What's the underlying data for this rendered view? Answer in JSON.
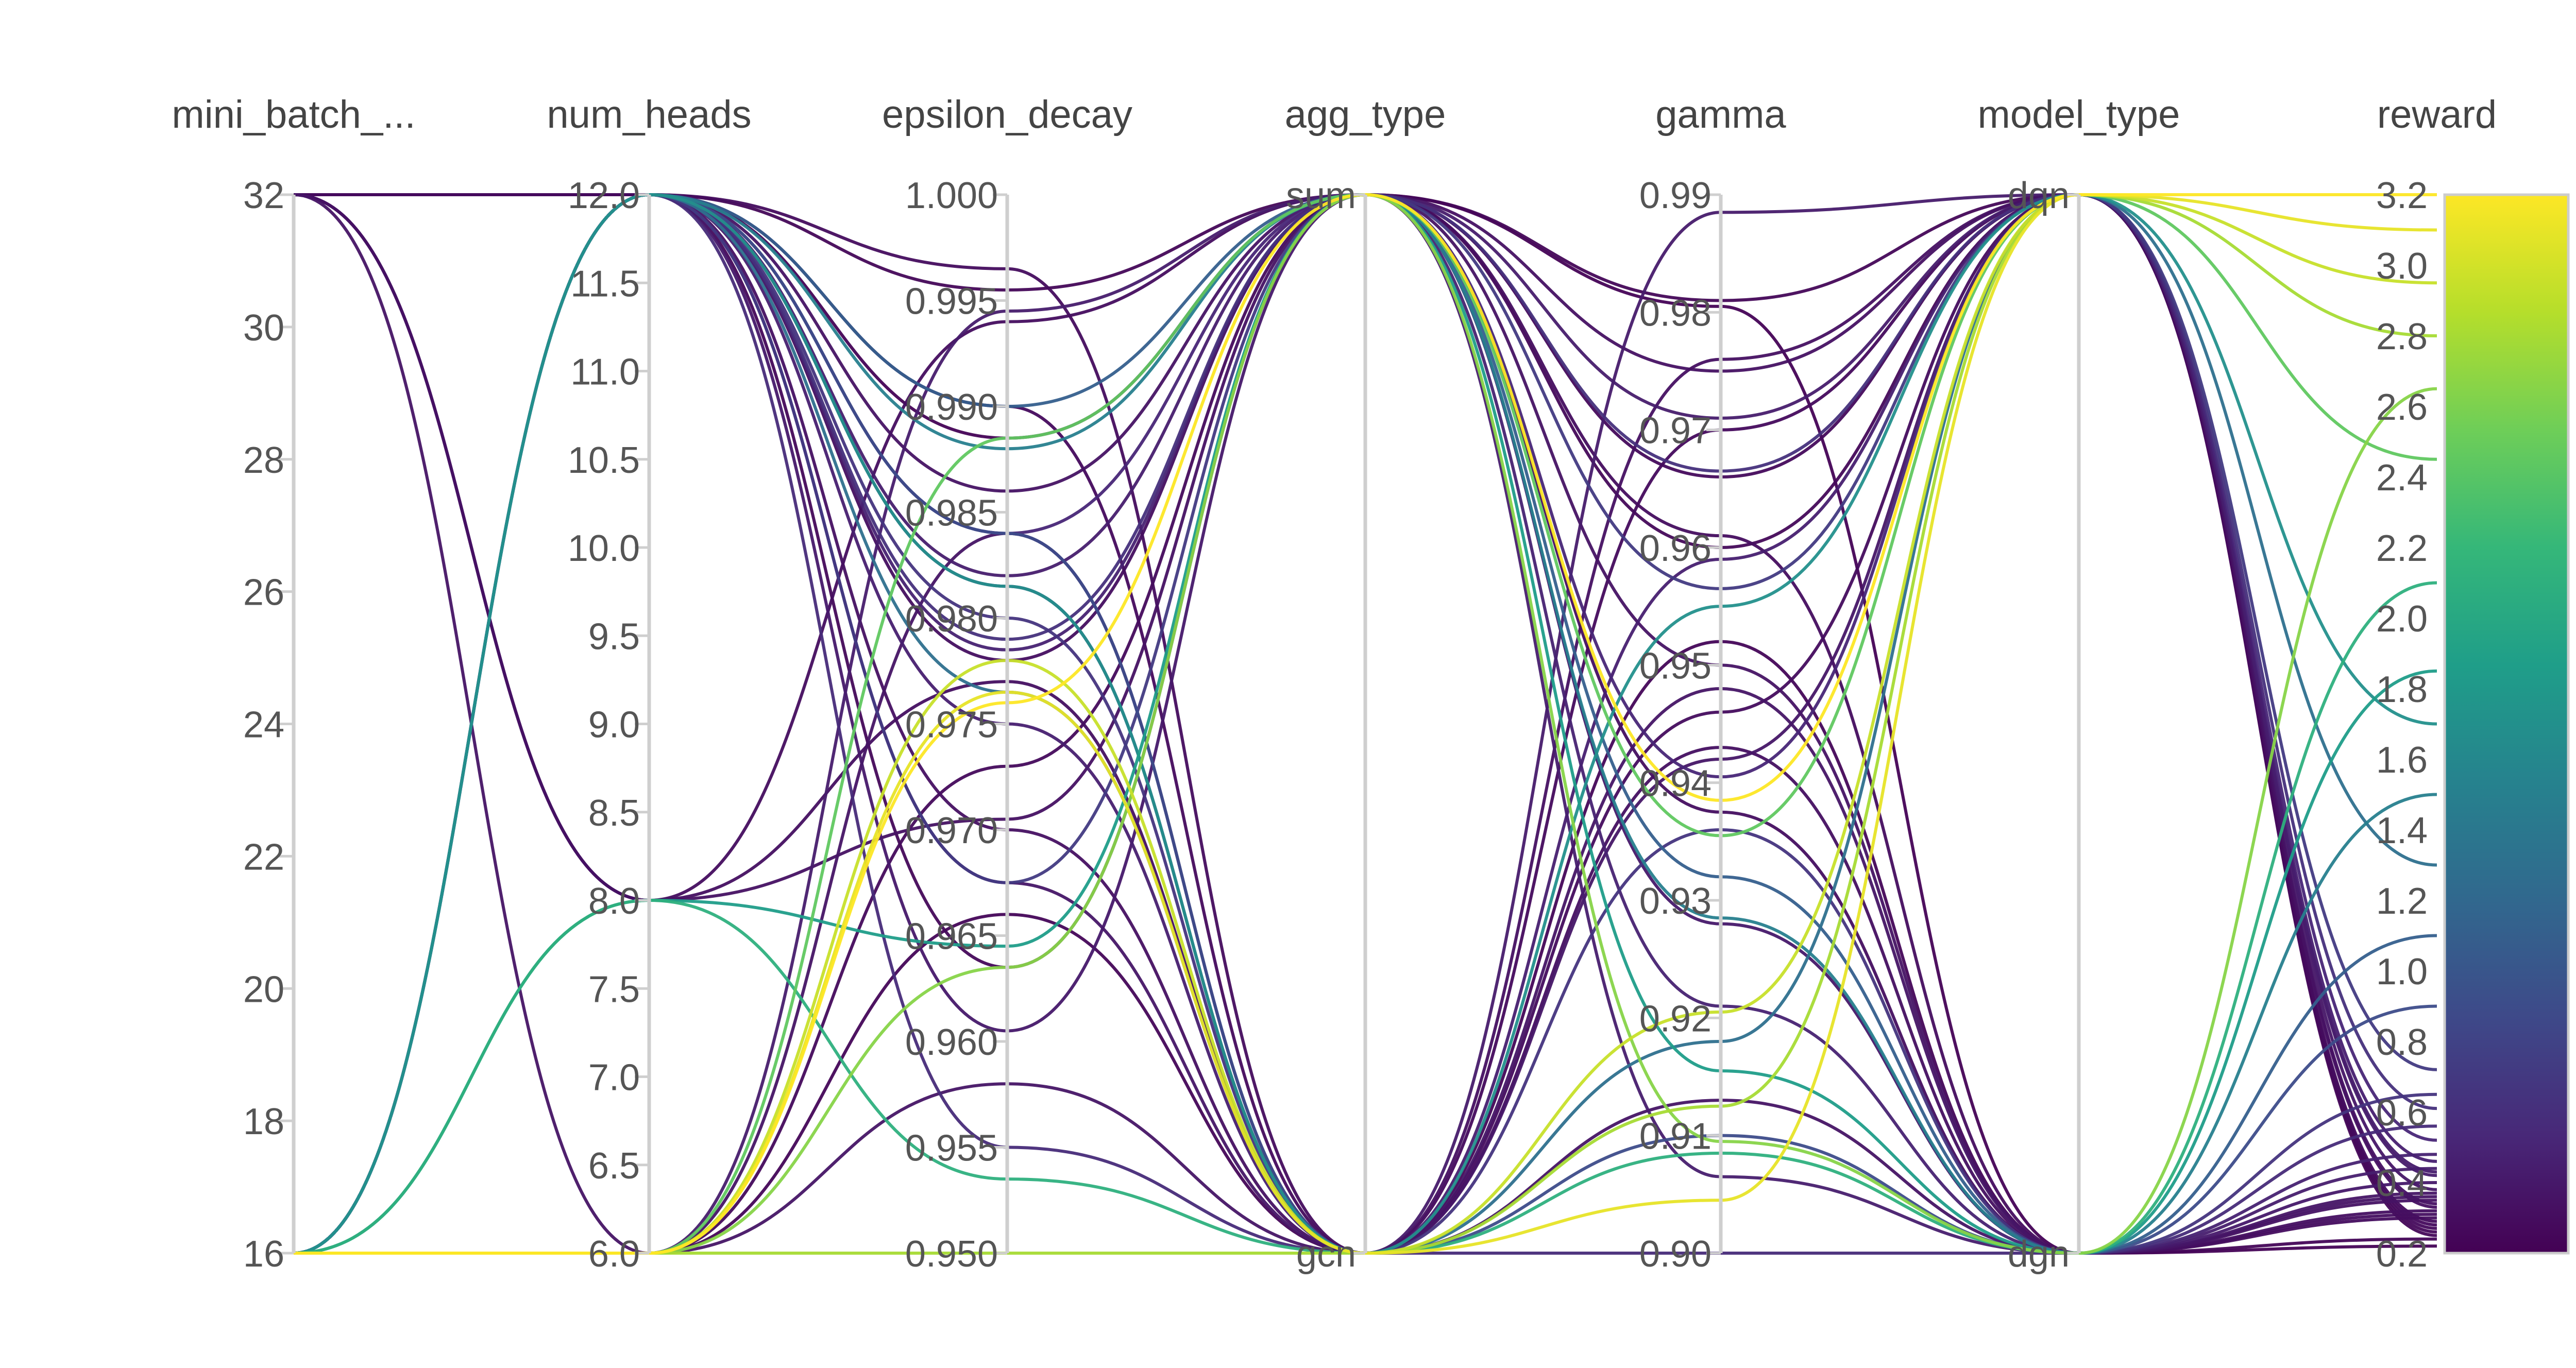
{
  "chart_data": {
    "type": "parallel_coordinates",
    "axes": [
      {
        "name": "mini_batch_...",
        "kind": "numeric",
        "range": [
          16,
          32
        ],
        "ticks": [
          "32",
          "30",
          "28",
          "26",
          "24",
          "22",
          "20",
          "18",
          "16"
        ]
      },
      {
        "name": "num_heads",
        "kind": "numeric",
        "range": [
          6.0,
          12.0
        ],
        "ticks": [
          "12.0",
          "11.5",
          "11.0",
          "10.5",
          "10.0",
          "9.5",
          "9.0",
          "8.5",
          "8.0",
          "7.5",
          "7.0",
          "6.5",
          "6.0"
        ]
      },
      {
        "name": "epsilon_decay",
        "kind": "numeric",
        "range": [
          0.95,
          1.0
        ],
        "ticks": [
          "1.000",
          "0.995",
          "0.990",
          "0.985",
          "0.980",
          "0.975",
          "0.970",
          "0.965",
          "0.960",
          "0.955",
          "0.950"
        ]
      },
      {
        "name": "agg_type",
        "kind": "categorical",
        "categories": [
          "sum",
          "gcn"
        ],
        "ticks": [
          "sum",
          "gcn"
        ]
      },
      {
        "name": "gamma",
        "kind": "numeric",
        "range": [
          0.9,
          0.99
        ],
        "ticks": [
          "0.99",
          "0.98",
          "0.97",
          "0.96",
          "0.95",
          "0.94",
          "0.93",
          "0.92",
          "0.91",
          "0.90"
        ]
      },
      {
        "name": "model_type",
        "kind": "categorical",
        "categories": [
          "dqn",
          "dgn"
        ],
        "ticks": [
          "dqn",
          "dgn"
        ]
      },
      {
        "name": "reward",
        "kind": "numeric",
        "range": [
          0.2,
          3.2
        ],
        "ticks": [
          "3.2",
          "3.0",
          "2.8",
          "2.6",
          "2.4",
          "2.2",
          "2.0",
          "1.8",
          "1.6",
          "1.4",
          "1.2",
          "1.0",
          "0.8",
          "0.6",
          "0.4",
          "0.2"
        ]
      }
    ],
    "colorscale": {
      "name": "viridis",
      "range": [
        0.2,
        3.2
      ],
      "stops": [
        "#440154",
        "#482878",
        "#3e4989",
        "#31688e",
        "#26828e",
        "#1f9e89",
        "#35b779",
        "#6ece58",
        "#b5de2b",
        "#fde725"
      ]
    },
    "rows": [
      [
        32,
        12.0,
        0.9955,
        "sum",
        0.981,
        "dqn",
        0.25
      ],
      [
        32,
        12.0,
        0.99,
        "gcn",
        0.97,
        "dqn",
        0.28
      ],
      [
        32,
        8.0,
        0.994,
        "sum",
        0.961,
        "dgn",
        0.3
      ],
      [
        32,
        8.0,
        0.977,
        "gcn",
        0.943,
        "dgn",
        0.32
      ],
      [
        32,
        8.0,
        0.9705,
        "sum",
        0.975,
        "dqn",
        0.34
      ],
      [
        32,
        6.0,
        0.984,
        "gcn",
        0.913,
        "dgn",
        0.36
      ],
      [
        16,
        12.0,
        0.9885,
        "sum",
        0.9805,
        "dgn",
        0.22
      ],
      [
        16,
        12.0,
        0.9635,
        "sum",
        0.96,
        "dqn",
        0.26
      ],
      [
        16,
        12.0,
        0.9965,
        "gcn",
        0.946,
        "dqn",
        0.29
      ],
      [
        16,
        12.0,
        0.978,
        "sum",
        0.9375,
        "dgn",
        0.31
      ],
      [
        16,
        12.0,
        0.97,
        "gcn",
        0.976,
        "dqn",
        0.33
      ],
      [
        16,
        12.0,
        0.986,
        "sum",
        0.95,
        "dgn",
        0.35
      ],
      [
        16,
        12.0,
        0.9675,
        "gcn",
        0.942,
        "dqn",
        0.38
      ],
      [
        16,
        12.0,
        0.9605,
        "sum",
        0.928,
        "dgn",
        0.4
      ],
      [
        16,
        12.0,
        0.9815,
        "gcn",
        0.9885,
        "dqn",
        0.42
      ],
      [
        16,
        12.0,
        0.982,
        "sum",
        0.9065,
        "dgn",
        0.44
      ],
      [
        16,
        12.0,
        0.975,
        "gcn",
        0.959,
        "dqn",
        0.46
      ],
      [
        16,
        12.0,
        0.9785,
        "sum",
        0.921,
        "dgn",
        0.48
      ],
      [
        16,
        12.0,
        0.984,
        "sum",
        0.9405,
        "dqn",
        0.52
      ],
      [
        16,
        12.0,
        0.955,
        "gcn",
        0.9,
        "dgn",
        0.56
      ],
      [
        16,
        12.0,
        0.979,
        "sum",
        0.9665,
        "dqn",
        0.61
      ],
      [
        16,
        12.0,
        0.98,
        "gcn",
        0.936,
        "dgn",
        0.65
      ],
      [
        16,
        12.0,
        0.9675,
        "sum",
        0.9565,
        "dqn",
        0.72
      ],
      [
        16,
        12.0,
        0.984,
        "gcn",
        0.91,
        "dgn",
        0.9
      ],
      [
        16,
        12.0,
        0.99,
        "sum",
        0.932,
        "dgn",
        1.1
      ],
      [
        16,
        12.0,
        0.9765,
        "gcn",
        0.918,
        "dqn",
        1.3
      ],
      [
        16,
        12.0,
        0.988,
        "sum",
        0.9285,
        "dgn",
        1.5
      ],
      [
        16,
        12.0,
        0.9815,
        "gcn",
        0.955,
        "dqn",
        1.7
      ],
      [
        16,
        8.0,
        0.9645,
        "sum",
        0.9155,
        "dgn",
        1.85
      ],
      [
        16,
        8.0,
        0.9535,
        "gcn",
        0.9085,
        "dgn",
        2.1
      ],
      [
        16,
        6.0,
        0.9885,
        "sum",
        0.9355,
        "dqn",
        2.45
      ],
      [
        16,
        6.0,
        0.9635,
        "sum",
        0.9095,
        "dgn",
        2.65
      ],
      [
        16,
        6.0,
        0.95,
        "gcn",
        0.9125,
        "dqn",
        2.8
      ],
      [
        16,
        6.0,
        0.978,
        "gcn",
        0.9205,
        "dqn",
        2.95
      ],
      [
        16,
        6.0,
        0.9765,
        "gcn",
        0.9045,
        "dqn",
        3.1
      ],
      [
        16,
        6.0,
        0.976,
        "sum",
        0.9385,
        "dqn",
        3.2
      ],
      [
        16,
        6.0,
        0.966,
        "gcn",
        0.952,
        "dgn",
        0.24
      ],
      [
        16,
        6.0,
        0.973,
        "sum",
        0.966,
        "dqn",
        0.27
      ],
      [
        16,
        6.0,
        0.958,
        "gcn",
        0.948,
        "dgn",
        0.37
      ],
      [
        16,
        6.0,
        0.9945,
        "sum",
        0.971,
        "dqn",
        0.43
      ]
    ]
  }
}
